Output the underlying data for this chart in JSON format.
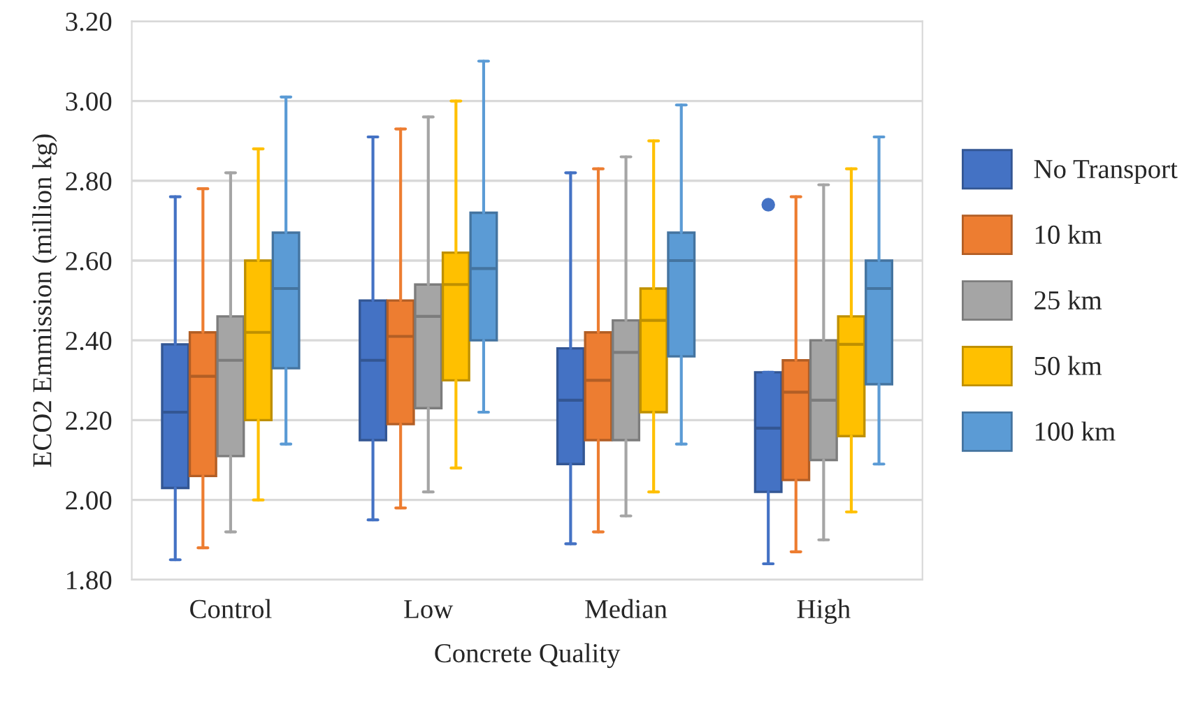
{
  "chart_data": {
    "type": "box",
    "xlabel": "Concrete Quality",
    "ylabel": "ECO2 Emmission (million kg)",
    "categories": [
      "Control",
      "Low",
      "Median",
      "High"
    ],
    "ylim": [
      1.8,
      3.2
    ],
    "yticks": [
      {
        "value": 1.8,
        "label": "1.80"
      },
      {
        "value": 2.0,
        "label": "2.00"
      },
      {
        "value": 2.2,
        "label": "2.20"
      },
      {
        "value": 2.4,
        "label": "2.40"
      },
      {
        "value": 2.6,
        "label": "2.60"
      },
      {
        "value": 2.8,
        "label": "2.80"
      },
      {
        "value": 3.0,
        "label": "3.00"
      },
      {
        "value": 3.2,
        "label": "3.20"
      }
    ],
    "grid": "y",
    "legend": "right",
    "series": [
      {
        "name": "No Transport",
        "color": "#4472c4",
        "boxes": [
          {
            "low": 1.85,
            "q1": 2.03,
            "median": 2.22,
            "q3": 2.39,
            "high": 2.76
          },
          {
            "low": 1.95,
            "q1": 2.15,
            "median": 2.35,
            "q3": 2.5,
            "high": 2.91
          },
          {
            "low": 1.89,
            "q1": 2.09,
            "median": 2.25,
            "q3": 2.38,
            "high": 2.82
          },
          {
            "low": 1.84,
            "q1": 2.02,
            "median": 2.18,
            "q3": 2.32,
            "high": 2.32,
            "outliers": [
              2.74
            ]
          }
        ]
      },
      {
        "name": "10 km",
        "color": "#ed7d31",
        "boxes": [
          {
            "low": 1.88,
            "q1": 2.06,
            "median": 2.31,
            "q3": 2.42,
            "high": 2.78
          },
          {
            "low": 1.98,
            "q1": 2.19,
            "median": 2.41,
            "q3": 2.5,
            "high": 2.93
          },
          {
            "low": 1.92,
            "q1": 2.15,
            "median": 2.3,
            "q3": 2.42,
            "high": 2.83
          },
          {
            "low": 1.87,
            "q1": 2.05,
            "median": 2.27,
            "q3": 2.35,
            "high": 2.76
          }
        ]
      },
      {
        "name": "25 km",
        "color": "#a5a5a5",
        "boxes": [
          {
            "low": 1.92,
            "q1": 2.11,
            "median": 2.35,
            "q3": 2.46,
            "high": 2.82
          },
          {
            "low": 2.02,
            "q1": 2.23,
            "median": 2.46,
            "q3": 2.54,
            "high": 2.96
          },
          {
            "low": 1.96,
            "q1": 2.15,
            "median": 2.37,
            "q3": 2.45,
            "high": 2.86
          },
          {
            "low": 1.9,
            "q1": 2.1,
            "median": 2.25,
            "q3": 2.4,
            "high": 2.79
          }
        ]
      },
      {
        "name": "50 km",
        "color": "#ffc000",
        "boxes": [
          {
            "low": 2.0,
            "q1": 2.2,
            "median": 2.42,
            "q3": 2.6,
            "high": 2.88
          },
          {
            "low": 2.08,
            "q1": 2.3,
            "median": 2.54,
            "q3": 2.62,
            "high": 3.0
          },
          {
            "low": 2.02,
            "q1": 2.22,
            "median": 2.45,
            "q3": 2.53,
            "high": 2.9
          },
          {
            "low": 1.97,
            "q1": 2.16,
            "median": 2.39,
            "q3": 2.46,
            "high": 2.83
          }
        ]
      },
      {
        "name": "100 km",
        "color": "#5b9bd5",
        "boxes": [
          {
            "low": 2.14,
            "q1": 2.33,
            "median": 2.53,
            "q3": 2.67,
            "high": 3.01
          },
          {
            "low": 2.22,
            "q1": 2.4,
            "median": 2.58,
            "q3": 2.72,
            "high": 3.1
          },
          {
            "low": 2.14,
            "q1": 2.36,
            "median": 2.6,
            "q3": 2.67,
            "high": 2.99
          },
          {
            "low": 2.09,
            "q1": 2.29,
            "median": 2.53,
            "q3": 2.6,
            "high": 2.91
          }
        ]
      }
    ]
  }
}
